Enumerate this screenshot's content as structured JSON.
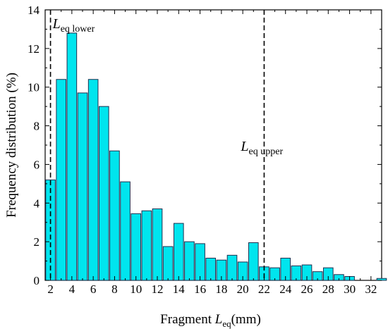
{
  "chart_data": {
    "type": "bar",
    "xlabel": {
      "prefix": "Fragment ",
      "symbol": "L",
      "subscript": "eq",
      "suffix": "(mm)"
    },
    "ylabel": "Frequency distribution (%)",
    "xlim": [
      1.5,
      33
    ],
    "ylim": [
      0,
      14
    ],
    "xticks": [
      2,
      4,
      6,
      8,
      10,
      12,
      14,
      16,
      18,
      20,
      22,
      24,
      26,
      28,
      30,
      32
    ],
    "yticks": [
      0,
      2,
      4,
      6,
      8,
      10,
      12,
      14
    ],
    "bar_width": 0.9,
    "bar_color": "#00e5ee",
    "bar_edge_color": "#1f2f4f",
    "bins": [
      2,
      3,
      4,
      5,
      6,
      7,
      8,
      9,
      10,
      11,
      12,
      13,
      14,
      15,
      16,
      17,
      18,
      19,
      20,
      21,
      22,
      23,
      24,
      25,
      26,
      27,
      28,
      29,
      30,
      31,
      32,
      33
    ],
    "values": [
      5.2,
      10.4,
      12.8,
      9.7,
      10.4,
      9.0,
      6.7,
      5.1,
      3.45,
      3.6,
      3.7,
      1.75,
      2.95,
      2.0,
      1.9,
      1.15,
      1.05,
      1.3,
      0.95,
      1.95,
      0.7,
      0.65,
      1.15,
      0.75,
      0.8,
      0.45,
      0.65,
      0.3,
      0.2,
      0.0,
      0.0,
      0.1
    ],
    "reference_lines": [
      {
        "x": 2,
        "symbol": "L",
        "subscript": "eq lower",
        "color": "#000000",
        "style": "dashed"
      },
      {
        "x": 22,
        "symbol": "L",
        "subscript": "eq upper",
        "color": "#000000",
        "style": "dashed"
      }
    ],
    "grid": false,
    "legend": "none"
  }
}
